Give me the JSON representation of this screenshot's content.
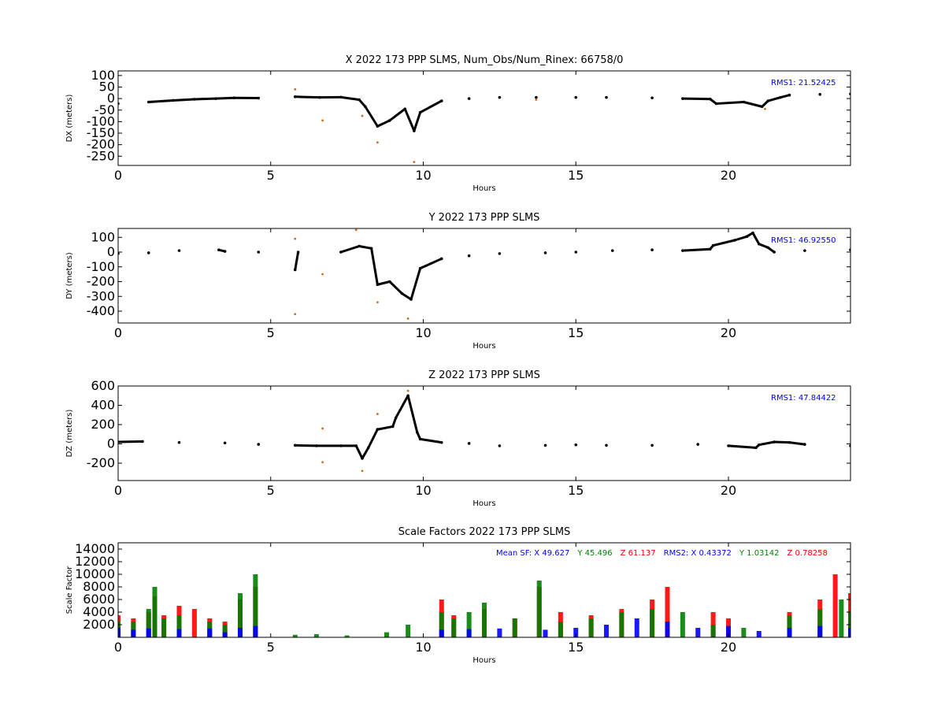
{
  "chart_data": [
    {
      "type": "scatter",
      "title": "X 2022 173 PPP  SLMS, Num_Obs/Num_Rinex: 66758/0",
      "xlabel": "Hours",
      "ylabel": "DX (meters)",
      "xlim": [
        0,
        24
      ],
      "ylim": [
        -290,
        120
      ],
      "xticks": [
        0,
        5,
        10,
        15,
        20
      ],
      "yticks": [
        100,
        50,
        0,
        -50,
        -100,
        -150,
        -200,
        -250
      ],
      "annotation": "RMS1: 21.52425",
      "annotation_color": "#0000ff",
      "series": [
        {
          "color": "#000000",
          "points": [
            [
              0,
              -22
            ],
            [
              1,
              -15
            ],
            [
              1.8,
              -8
            ],
            [
              2.5,
              -3
            ],
            [
              3.2,
              0
            ],
            [
              3.8,
              3
            ],
            [
              4.6,
              2
            ],
            [
              5.8,
              8
            ],
            [
              6.6,
              5
            ],
            [
              7.3,
              6
            ],
            [
              7.9,
              -5
            ],
            [
              8.1,
              -35
            ],
            [
              8.5,
              -120
            ],
            [
              8.9,
              -95
            ],
            [
              9.4,
              -45
            ],
            [
              9.7,
              -140
            ],
            [
              9.9,
              -60
            ],
            [
              10.6,
              -10
            ],
            [
              11.5,
              0
            ],
            [
              12.5,
              5
            ],
            [
              13.7,
              5
            ],
            [
              15,
              5
            ],
            [
              16,
              5
            ],
            [
              17.5,
              3
            ],
            [
              18.5,
              0
            ],
            [
              19.4,
              -2
            ],
            [
              19.6,
              -22
            ],
            [
              20.5,
              -15
            ],
            [
              21.1,
              -35
            ],
            [
              21.3,
              -10
            ],
            [
              21.7,
              5
            ],
            [
              22,
              15
            ],
            [
              23,
              18
            ],
            [
              24,
              20
            ]
          ]
        },
        {
          "color": "#d2691e",
          "points": [
            [
              5.8,
              40
            ],
            [
              6.7,
              -95
            ],
            [
              8.0,
              -75
            ],
            [
              8.5,
              -190
            ],
            [
              9.7,
              -275
            ],
            [
              13.7,
              -5
            ],
            [
              21.2,
              -45
            ]
          ]
        }
      ]
    },
    {
      "type": "scatter",
      "title": "Y 2022 173 PPP  SLMS",
      "xlabel": "Hours",
      "ylabel": "DY (meters)",
      "xlim": [
        0,
        24
      ],
      "ylim": [
        -480,
        160
      ],
      "xticks": [
        0,
        5,
        10,
        15,
        20
      ],
      "yticks": [
        100,
        0,
        -100,
        -200,
        -300,
        -400
      ],
      "annotation": "RMS1: 46.92550",
      "annotation_color": "#0000ff",
      "series": [
        {
          "color": "#000000",
          "points": [
            [
              0,
              -10
            ],
            [
              1,
              -5
            ],
            [
              2,
              10
            ],
            [
              3.3,
              15
            ],
            [
              3.5,
              5
            ],
            [
              4.6,
              0
            ],
            [
              5.8,
              -120
            ],
            [
              5.9,
              0
            ],
            [
              7.3,
              0
            ],
            [
              7.9,
              40
            ],
            [
              8.3,
              25
            ],
            [
              8.5,
              -220
            ],
            [
              8.9,
              -200
            ],
            [
              9.3,
              -280
            ],
            [
              9.6,
              -320
            ],
            [
              9.9,
              -110
            ],
            [
              10.6,
              -45
            ],
            [
              11.5,
              -25
            ],
            [
              12.5,
              -10
            ],
            [
              14,
              -5
            ],
            [
              15,
              0
            ],
            [
              16.2,
              10
            ],
            [
              17.5,
              15
            ],
            [
              18.5,
              10
            ],
            [
              19.4,
              20
            ],
            [
              19.5,
              45
            ],
            [
              20.2,
              80
            ],
            [
              20.6,
              105
            ],
            [
              20.8,
              130
            ],
            [
              21,
              55
            ],
            [
              21.3,
              30
            ],
            [
              21.5,
              0
            ],
            [
              22.5,
              10
            ],
            [
              24,
              15
            ]
          ]
        },
        {
          "color": "#d2691e",
          "points": [
            [
              5.8,
              90
            ],
            [
              5.8,
              -420
            ],
            [
              6.7,
              -150
            ],
            [
              7.8,
              150
            ],
            [
              8.5,
              -340
            ],
            [
              9.5,
              -450
            ]
          ]
        }
      ]
    },
    {
      "type": "scatter",
      "title": "Z 2022 173 PPP  SLMS",
      "xlabel": "Hours",
      "ylabel": "DZ (meters)",
      "xlim": [
        0,
        24
      ],
      "ylim": [
        -380,
        600
      ],
      "xticks": [
        0,
        5,
        10,
        15,
        20
      ],
      "yticks": [
        600,
        400,
        200,
        0,
        -200
      ],
      "annotation": "RMS1: 47.84422",
      "annotation_color": "#0000ff",
      "series": [
        {
          "color": "#000000",
          "points": [
            [
              0,
              20
            ],
            [
              0.8,
              25
            ],
            [
              2,
              15
            ],
            [
              3.5,
              10
            ],
            [
              4.6,
              -5
            ],
            [
              5.8,
              -15
            ],
            [
              6.5,
              -20
            ],
            [
              7.3,
              -20
            ],
            [
              7.8,
              -20
            ],
            [
              8,
              -150
            ],
            [
              8.2,
              -40
            ],
            [
              8.5,
              150
            ],
            [
              9,
              180
            ],
            [
              9.1,
              270
            ],
            [
              9.5,
              500
            ],
            [
              9.8,
              120
            ],
            [
              9.9,
              50
            ],
            [
              10.6,
              15
            ],
            [
              11.5,
              5
            ],
            [
              12.5,
              -20
            ],
            [
              14,
              -15
            ],
            [
              15,
              -10
            ],
            [
              16,
              -15
            ],
            [
              17.5,
              -15
            ],
            [
              19,
              -5
            ],
            [
              20,
              -20
            ],
            [
              20.9,
              -40
            ],
            [
              21,
              -10
            ],
            [
              21.5,
              20
            ],
            [
              22,
              15
            ],
            [
              22.5,
              -5
            ],
            [
              24,
              -20
            ]
          ]
        },
        {
          "color": "#d2691e",
          "points": [
            [
              6.7,
              160
            ],
            [
              6.7,
              -190
            ],
            [
              8,
              -280
            ],
            [
              8.5,
              310
            ],
            [
              9.5,
              550
            ]
          ]
        }
      ]
    },
    {
      "type": "scatter",
      "title": "Scale Factors 2022 173 PPP  SLMS",
      "xlabel": "Hours",
      "ylabel": "Scale Factor",
      "xlim": [
        0,
        24
      ],
      "ylim": [
        0,
        15000
      ],
      "xticks": [
        0,
        5,
        10,
        15,
        20
      ],
      "yticks": [
        14000,
        12000,
        10000,
        8000,
        6000,
        4000,
        2000
      ],
      "annotation_parts": [
        {
          "text": "Mean SF: X  49.627",
          "color": "#0000ff"
        },
        {
          "text": "Y  45.496",
          "color": "#008000"
        },
        {
          "text": "Z  61.137",
          "color": "#ff0000"
        },
        {
          "text": "RMS2: X  0.43372",
          "color": "#0000ff"
        },
        {
          "text": "Y  1.03142",
          "color": "#008000"
        },
        {
          "text": "Z  0.78258",
          "color": "#ff0000"
        }
      ],
      "series": [
        {
          "color": "#ff0000",
          "points": [
            [
              0,
              3500
            ],
            [
              0.5,
              3000
            ],
            [
              1,
              4000
            ],
            [
              1.2,
              6500
            ],
            [
              1.5,
              3500
            ],
            [
              2,
              5000
            ],
            [
              2.5,
              4500
            ],
            [
              3,
              3000
            ],
            [
              3.5,
              2500
            ],
            [
              4,
              6000
            ],
            [
              4.5,
              8000
            ],
            [
              10.6,
              6000
            ],
            [
              11,
              3500
            ],
            [
              12,
              4500
            ],
            [
              13,
              3000
            ],
            [
              13.8,
              8000
            ],
            [
              14.5,
              4000
            ],
            [
              15.5,
              3500
            ],
            [
              16.5,
              4500
            ],
            [
              17.5,
              6000
            ],
            [
              18,
              8000
            ],
            [
              19.5,
              4000
            ],
            [
              20,
              3000
            ],
            [
              22,
              4000
            ],
            [
              23,
              6000
            ],
            [
              23.5,
              10000
            ],
            [
              24,
              7000
            ]
          ]
        },
        {
          "color": "#008000",
          "points": [
            [
              0,
              2500
            ],
            [
              0.5,
              2500
            ],
            [
              1,
              4500
            ],
            [
              1.2,
              8000
            ],
            [
              1.5,
              3000
            ],
            [
              2,
              3500
            ],
            [
              3,
              2500
            ],
            [
              3.5,
              2000
            ],
            [
              4,
              7000
            ],
            [
              4.5,
              10000
            ],
            [
              5.8,
              400
            ],
            [
              6.5,
              500
            ],
            [
              7.5,
              300
            ],
            [
              8.8,
              800
            ],
            [
              9.5,
              2000
            ],
            [
              10.6,
              4000
            ],
            [
              11,
              3000
            ],
            [
              11.5,
              4000
            ],
            [
              12,
              5500
            ],
            [
              13,
              3000
            ],
            [
              13.8,
              9000
            ],
            [
              14.5,
              2500
            ],
            [
              15.5,
              3000
            ],
            [
              16.5,
              4000
            ],
            [
              17.5,
              4500
            ],
            [
              18.5,
              4000
            ],
            [
              19.5,
              2000
            ],
            [
              20.5,
              1500
            ],
            [
              22,
              3500
            ],
            [
              23,
              4500
            ],
            [
              23.7,
              6000
            ],
            [
              24,
              4000
            ]
          ]
        },
        {
          "color": "#0000ff",
          "points": [
            [
              0,
              1500
            ],
            [
              0.5,
              1200
            ],
            [
              1,
              1400
            ],
            [
              2,
              1300
            ],
            [
              3,
              1400
            ],
            [
              3.5,
              800
            ],
            [
              4,
              1500
            ],
            [
              4.5,
              1800
            ],
            [
              10.6,
              1200
            ],
            [
              11.5,
              1300
            ],
            [
              12.5,
              1400
            ],
            [
              14,
              1200
            ],
            [
              15,
              1500
            ],
            [
              16,
              2000
            ],
            [
              17,
              3000
            ],
            [
              18,
              2500
            ],
            [
              19,
              1500
            ],
            [
              20,
              1800
            ],
            [
              21,
              1000
            ],
            [
              22,
              1500
            ],
            [
              23,
              1800
            ],
            [
              24,
              1500
            ]
          ]
        }
      ]
    }
  ]
}
